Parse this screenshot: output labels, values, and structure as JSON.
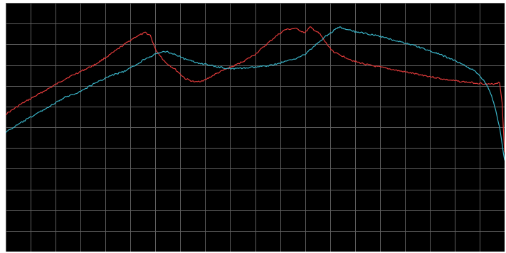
{
  "chart_data": {
    "type": "line",
    "title": "",
    "xlabel": "",
    "ylabel": "",
    "grid": true,
    "legend": "none",
    "xlim": [
      0,
      100
    ],
    "ylim": [
      0,
      100
    ],
    "grid_x_divisions": 20,
    "grid_y_divisions": 12,
    "background": "#000000",
    "grid_color": "#5f5f5f",
    "series": [
      {
        "color": "#e03a3a",
        "x": [
          0,
          3,
          6,
          9,
          12,
          15,
          18,
          21,
          24,
          26,
          28,
          29,
          30,
          31,
          32,
          34,
          36,
          38,
          40,
          42,
          44,
          46,
          48,
          50,
          52,
          54,
          56,
          58,
          60,
          61,
          62,
          63,
          64,
          65,
          66,
          68,
          70,
          73,
          76,
          79,
          82,
          85,
          88,
          91,
          94,
          96,
          97,
          98,
          99,
          99.5,
          100
        ],
        "y": [
          55.2,
          59.2,
          62.6,
          66.0,
          69.5,
          72.4,
          75.3,
          79.3,
          83.6,
          86.3,
          88.0,
          86.9,
          81.3,
          78.7,
          76.1,
          73.2,
          69.5,
          68.1,
          69.0,
          71.3,
          73.2,
          74.9,
          76.9,
          79.3,
          82.8,
          86.3,
          89.2,
          89.7,
          88.0,
          90.2,
          88.9,
          87.4,
          84.4,
          81.8,
          79.9,
          78.2,
          76.4,
          74.9,
          73.8,
          72.6,
          71.5,
          70.4,
          69.2,
          68.4,
          67.8,
          67.5,
          67.2,
          67.5,
          68.1,
          60.0,
          40.0
        ]
      },
      {
        "color": "#3ab4c8",
        "x": [
          0,
          3,
          6,
          9,
          12,
          15,
          18,
          21,
          24,
          26,
          28,
          30,
          32,
          34,
          36,
          38,
          40,
          42,
          44,
          46,
          48,
          50,
          52,
          54,
          56,
          58,
          60,
          62,
          64,
          66,
          67,
          68,
          70,
          73,
          76,
          79,
          82,
          85,
          88,
          91,
          94,
          96,
          97,
          98,
          99,
          99.5,
          100
        ],
        "y": [
          48.0,
          51.7,
          55.2,
          58.6,
          62.1,
          64.4,
          67.8,
          70.7,
          72.6,
          74.9,
          77.6,
          79.3,
          80.5,
          79.3,
          77.3,
          76.1,
          75.3,
          74.4,
          73.8,
          73.5,
          73.8,
          74.1,
          74.6,
          75.3,
          76.4,
          77.6,
          79.3,
          82.8,
          86.3,
          89.2,
          90.2,
          89.4,
          88.4,
          87.4,
          86.0,
          84.4,
          82.8,
          80.7,
          78.5,
          75.9,
          72.6,
          68.4,
          64.9,
          58.6,
          50.0,
          43.1,
          36.8
        ]
      }
    ]
  }
}
